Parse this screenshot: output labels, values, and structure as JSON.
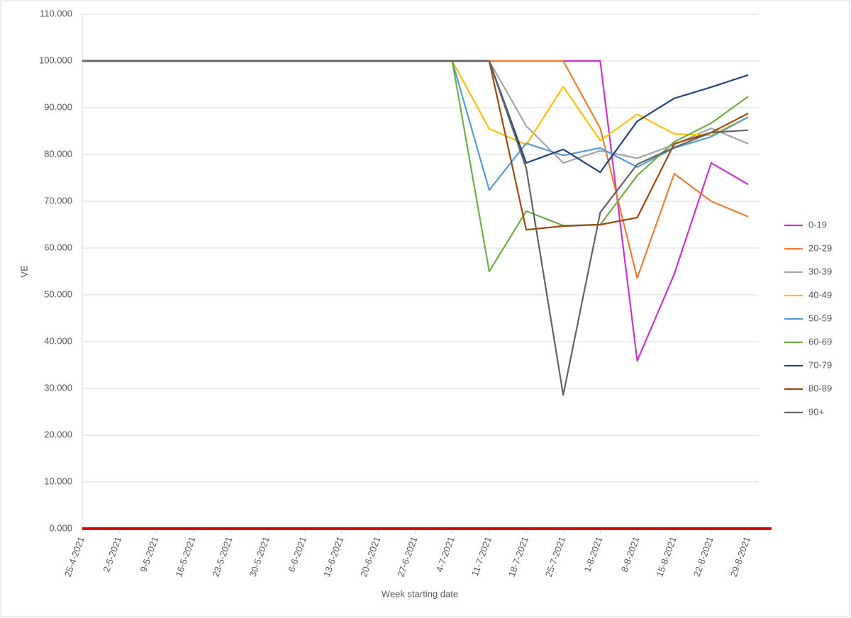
{
  "chart_data": {
    "type": "line",
    "x_label": "Week starting date",
    "y_label": "VE",
    "categories": [
      "25-4-2021",
      "2-5-2021",
      "9-5-2021",
      "16-5-2021",
      "23-5-2021",
      "30-5-2021",
      "6-6-2021",
      "13-6-2021",
      "20-6-2021",
      "27-6-2021",
      "4-7-2021",
      "11-7-2021",
      "18-7-2021",
      "25-7-2021",
      "1-8-2021",
      "8-8-2021",
      "15-8-2021",
      "22-8-2021",
      "29-8-2021"
    ],
    "ylim": [
      0,
      110
    ],
    "yticks": [
      {
        "value": 0,
        "label": "0.000"
      },
      {
        "value": 10,
        "label": "10.000"
      },
      {
        "value": 20,
        "label": "20.000"
      },
      {
        "value": 30,
        "label": "30.000"
      },
      {
        "value": 40,
        "label": "40.000"
      },
      {
        "value": 50,
        "label": "50.000"
      },
      {
        "value": 60,
        "label": "60.000"
      },
      {
        "value": 70,
        "label": "70.000"
      },
      {
        "value": 80,
        "label": "80.000"
      },
      {
        "value": 90,
        "label": "90.000"
      },
      {
        "value": 100,
        "label": "100.000"
      },
      {
        "value": 110,
        "label": "110.000"
      }
    ],
    "grid": true,
    "legend": "right",
    "series": [
      {
        "name": "0-19",
        "color": "#cc33cc",
        "values": [
          100,
          100,
          100,
          100,
          100,
          100,
          100,
          100,
          100,
          100,
          100,
          100,
          100,
          100,
          100,
          35.9,
          54.4,
          78.2,
          73.6
        ]
      },
      {
        "name": "20-29",
        "color": "#ed7d31",
        "values": [
          100,
          100,
          100,
          100,
          100,
          100,
          100,
          100,
          100,
          100,
          100,
          100,
          100,
          100,
          85.6,
          53.6,
          75.9,
          70.0,
          66.7
        ]
      },
      {
        "name": "30-39",
        "color": "#a5a5a5",
        "values": [
          100,
          100,
          100,
          100,
          100,
          100,
          100,
          100,
          100,
          100,
          100,
          100,
          86.1,
          78.2,
          80.8,
          79.2,
          82.1,
          85.6,
          82.3
        ]
      },
      {
        "name": "40-49",
        "color": "#ffc000",
        "values": [
          100,
          100,
          100,
          100,
          100,
          100,
          100,
          100,
          100,
          100,
          100,
          85.5,
          82.1,
          94.5,
          83.0,
          88.6,
          84.4,
          84.1,
          88.0
        ]
      },
      {
        "name": "50-59",
        "color": "#5b9bd5",
        "values": [
          100,
          100,
          100,
          100,
          100,
          100,
          100,
          100,
          100,
          100,
          100,
          72.4,
          82.4,
          79.8,
          81.4,
          77.3,
          81.4,
          83.8,
          88.0
        ]
      },
      {
        "name": "60-69",
        "color": "#70ad47",
        "values": [
          100,
          100,
          100,
          100,
          100,
          100,
          100,
          100,
          100,
          100,
          100,
          55.0,
          67.9,
          64.8,
          65.0,
          75.5,
          82.7,
          86.7,
          92.4
        ]
      },
      {
        "name": "70-79",
        "color": "#264478",
        "values": [
          100,
          100,
          100,
          100,
          100,
          100,
          100,
          100,
          100,
          100,
          100,
          100,
          78.2,
          81.1,
          76.2,
          87.1,
          92.0,
          94.4,
          97.0
        ]
      },
      {
        "name": "80-89",
        "color": "#9e480e",
        "values": [
          100,
          100,
          100,
          100,
          100,
          100,
          100,
          100,
          100,
          100,
          100,
          100,
          63.9,
          64.7,
          65.0,
          66.5,
          82.3,
          84.7,
          88.8
        ]
      },
      {
        "name": "90+",
        "color": "#636363",
        "values": [
          100,
          100,
          100,
          100,
          100,
          100,
          100,
          100,
          100,
          100,
          100,
          100,
          77.1,
          28.6,
          67.6,
          77.9,
          81.5,
          84.7,
          85.2
        ]
      }
    ]
  }
}
